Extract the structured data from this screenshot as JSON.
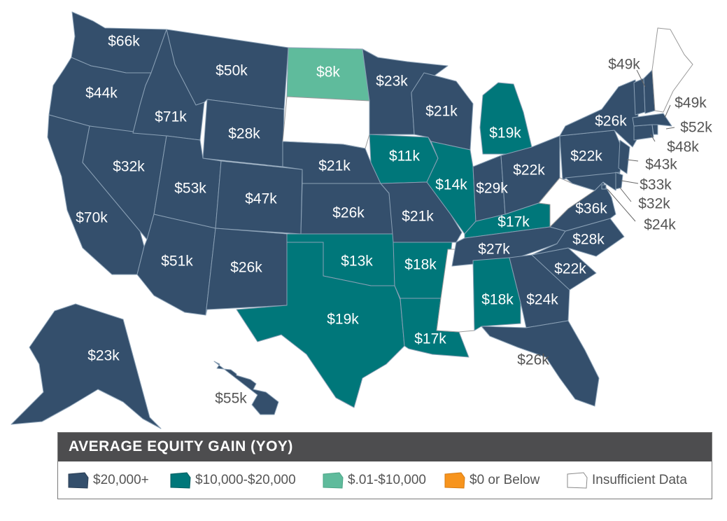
{
  "colors": {
    "tier1": "#344f6c",
    "tier2": "#00777a",
    "tier3": "#5fbb9c",
    "tier4": "#f7941d",
    "insufficient": "#ffffff",
    "label_inside": "#ffffff",
    "label_outside": "#555555",
    "legend_header": "#4d4d4f"
  },
  "legend": {
    "title": "AVERAGE EQUITY GAIN (YOY)",
    "items": [
      {
        "label": "$20,000+",
        "color": "#344f6c"
      },
      {
        "label": "$10,000-$20,000",
        "color": "#00777a"
      },
      {
        "label": "$.01-$10,000",
        "color": "#5fbb9c"
      },
      {
        "label": "$0 or Below",
        "color": "#f7941d"
      },
      {
        "label": "Insufficient Data",
        "color": "#ffffff"
      }
    ]
  },
  "states": {
    "WA": {
      "label": "$66k",
      "tier": 1
    },
    "OR": {
      "label": "$44k",
      "tier": 1
    },
    "CA": {
      "label": "$70k",
      "tier": 1
    },
    "NV": {
      "label": "$32k",
      "tier": 1
    },
    "ID": {
      "label": "$71k",
      "tier": 1
    },
    "MT": {
      "label": "$50k",
      "tier": 1
    },
    "WY": {
      "label": "$28k",
      "tier": 1
    },
    "UT": {
      "label": "$53k",
      "tier": 1
    },
    "CO": {
      "label": "$47k",
      "tier": 1
    },
    "AZ": {
      "label": "$51k",
      "tier": 1
    },
    "NM": {
      "label": "$26k",
      "tier": 1
    },
    "ND": {
      "label": "$8k",
      "tier": 3
    },
    "SD": {
      "label": "",
      "tier": 0
    },
    "NE": {
      "label": "$21k",
      "tier": 1
    },
    "KS": {
      "label": "$26k",
      "tier": 1
    },
    "OK": {
      "label": "$13k",
      "tier": 2
    },
    "TX": {
      "label": "$19k",
      "tier": 2
    },
    "MN": {
      "label": "$23k",
      "tier": 1
    },
    "IA": {
      "label": "$11k",
      "tier": 2
    },
    "MO": {
      "label": "$21k",
      "tier": 1
    },
    "AR": {
      "label": "$18k",
      "tier": 2
    },
    "LA": {
      "label": "$17k",
      "tier": 2
    },
    "WI": {
      "label": "$21k",
      "tier": 1
    },
    "IL": {
      "label": "$14k",
      "tier": 2
    },
    "MI": {
      "label": "$19k",
      "tier": 2
    },
    "IN": {
      "label": "$29k",
      "tier": 1
    },
    "OH": {
      "label": "$22k",
      "tier": 1
    },
    "KY": {
      "label": "$17k",
      "tier": 2
    },
    "TN": {
      "label": "$27k",
      "tier": 1
    },
    "MS": {
      "label": "",
      "tier": 0
    },
    "AL": {
      "label": "$18k",
      "tier": 2
    },
    "GA": {
      "label": "$24k",
      "tier": 1
    },
    "FL": {
      "label": "$26k",
      "tier": 1
    },
    "SC": {
      "label": "$22k",
      "tier": 1
    },
    "NC": {
      "label": "$28k",
      "tier": 1
    },
    "VA": {
      "label": "$36k",
      "tier": 1
    },
    "WV": {
      "label": "",
      "tier": 0
    },
    "PA": {
      "label": "$22k",
      "tier": 1
    },
    "NY": {
      "label": "$26k",
      "tier": 1
    },
    "MD": {
      "label": "$32k",
      "tier": 1
    },
    "DE": {
      "label": "$33k",
      "tier": 1
    },
    "DC": {
      "label": "$24k",
      "tier": 1
    },
    "NJ": {
      "label": "$43k",
      "tier": 1
    },
    "CT": {
      "label": "$48k",
      "tier": 1
    },
    "RI": {
      "label": "$52k",
      "tier": 1
    },
    "MA": {
      "label": "$49k",
      "tier": 1
    },
    "VT": {
      "label": "$49k",
      "tier": 1
    },
    "NH": {
      "label": "",
      "tier": 1
    },
    "ME": {
      "label": "",
      "tier": 0
    },
    "AK": {
      "label": "$23k",
      "tier": 1
    },
    "HI": {
      "label": "$55k",
      "tier": 1
    }
  }
}
